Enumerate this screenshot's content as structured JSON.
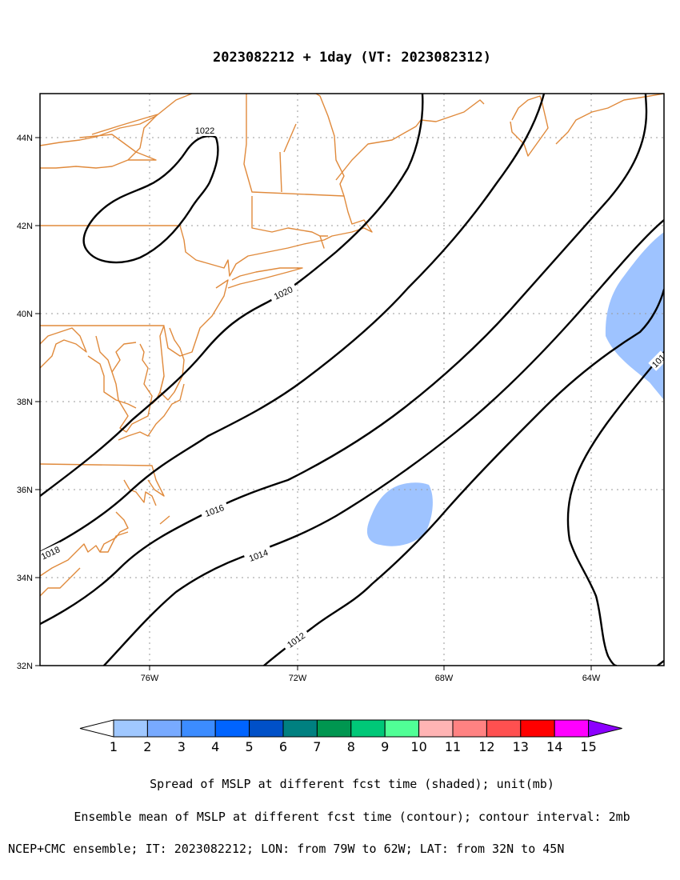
{
  "title": "2023082212 + 1day (VT: 2023082312)",
  "axes": {
    "lat_labels": [
      "44N",
      "42N",
      "40N",
      "38N",
      "36N",
      "34N",
      "32N"
    ],
    "lon_labels": [
      "76W",
      "72W",
      "68W",
      "64W"
    ]
  },
  "contour_labels": [
    "1022",
    "1020",
    "1018",
    "1016",
    "1014",
    "1012",
    "101"
  ],
  "colorbar": {
    "labels": [
      "1",
      "2",
      "3",
      "4",
      "5",
      "6",
      "7",
      "8",
      "9",
      "10",
      "11",
      "12",
      "13",
      "14",
      "15"
    ],
    "colors": [
      "#ffffff",
      "#a0c8ff",
      "#78aaff",
      "#3c8cff",
      "#0064ff",
      "#0050c8",
      "#008080",
      "#009650",
      "#00c878",
      "#50ff96",
      "#ffb4b4",
      "#ff8282",
      "#ff5050",
      "#ff0000",
      "#ff00ff",
      "#8c00ff"
    ]
  },
  "footer": {
    "line1": "Spread of MSLP at different fcst time (shaded); unit(mb)",
    "line2": "Ensemble mean of MSLP at different fcst time (contour); contour interval: 2mb",
    "line3": "NCEP+CMC ensemble; IT: 2023082212; LON: from 79W to 62W; LAT: from 32N to 45N"
  }
}
